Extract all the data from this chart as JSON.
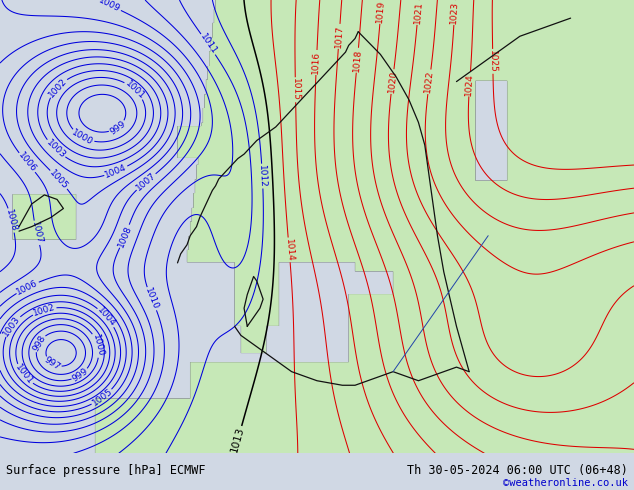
{
  "title_left": "Surface pressure [hPa] ECMWF",
  "title_right": "Th 30-05-2024 06:00 UTC (06+48)",
  "copyright": "©weatheronline.co.uk",
  "bg_color_ocean": "#d4dce8",
  "bg_color_land": "#c8eab8",
  "blue_color": "#0000dd",
  "red_color": "#dd0000",
  "black_color": "#000000",
  "border_color": "#111111",
  "label_fontsize": 6.5,
  "footer_fontsize": 8.5,
  "copyright_color": "#0000cc",
  "footer_bg": "#d0d8e4"
}
